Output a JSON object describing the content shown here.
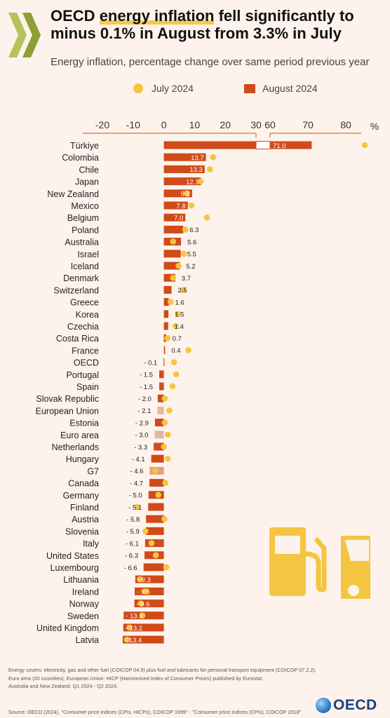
{
  "header": {
    "title_pre": "OECD ",
    "title_highlight": "energy inflation",
    "title_post": " fell significantly to minus 0.1% in August from 3.3% in July",
    "subtitle": "Energy inflation, percentage change over same period previous year"
  },
  "legend": {
    "july": "July 2024",
    "august": "August 2024"
  },
  "colors": {
    "bar": "#d04a1a",
    "bar_aggregate": "#e0b8a6",
    "bar_g7": "#eb9b7c",
    "dot": "#f5c542",
    "axis": "#e8824e",
    "background": "#fdf3ec"
  },
  "chart_data": {
    "type": "bar",
    "orientation": "horizontal",
    "unit": "%",
    "xlim_segment1": [
      -20,
      30
    ],
    "xlim_segment2": [
      60,
      80
    ],
    "ticks_segment1": [
      -20,
      -10,
      0,
      10,
      20,
      30
    ],
    "ticks_segment2": [
      60,
      70,
      80
    ],
    "categories": [
      "Türkiye",
      "Colombia",
      "Chile",
      "Japan",
      "New Zealand",
      "Mexico",
      "Belgium",
      "Poland",
      "Australia",
      "Israel",
      "Iceland",
      "Denmark",
      "Switzerland",
      "Greece",
      "Korea",
      "Czechia",
      "Costa Rica",
      "France",
      "OECD",
      "Portugal",
      "Spain",
      "Slovak Republic",
      "European Union",
      "Estonia",
      "Euro area",
      "Netherlands",
      "Hungary",
      "G7",
      "Canada",
      "Germany",
      "Finland",
      "Austria",
      "Slovenia",
      "Italy",
      "United States",
      "Luxembourg",
      "Lithuania",
      "Ireland",
      "Norway",
      "Sweden",
      "United Kingdom",
      "Latvia"
    ],
    "series": [
      {
        "name": "August 2024",
        "values": [
          71.0,
          13.7,
          13.3,
          12.1,
          9.2,
          7.8,
          7.0,
          6.3,
          5.6,
          5.5,
          5.2,
          3.7,
          2.5,
          1.6,
          1.5,
          1.4,
          0.7,
          0.4,
          -0.1,
          -1.5,
          -1.5,
          -2.0,
          -2.1,
          -2.9,
          -3.0,
          -3.3,
          -4.1,
          -4.6,
          -4.7,
          -5.0,
          -5.1,
          -5.8,
          -5.9,
          -6.1,
          -6.3,
          -6.6,
          -9.3,
          -9.5,
          -9.6,
          -13.1,
          -13.2,
          -13.4
        ]
      },
      {
        "name": "July 2024",
        "values": [
          85.0,
          16.0,
          15.0,
          12.0,
          7.5,
          9.0,
          14.0,
          7.0,
          3.0,
          6.5,
          4.8,
          3.0,
          6.2,
          2.2,
          4.5,
          3.8,
          1.2,
          8.0,
          3.3,
          4.0,
          2.8,
          0.3,
          1.8,
          0.3,
          1.3,
          0.0,
          1.3,
          -2.8,
          0.5,
          -1.8,
          -8.5,
          0.2,
          -6.0,
          -4.0,
          -2.6,
          0.8,
          -7.8,
          -6.0,
          -7.5,
          -7.0,
          -11.2,
          -12.0
        ]
      }
    ],
    "labels": [
      "71.0",
      "13.7",
      "13.3",
      "12.1",
      "9.2",
      "7.8",
      "7.0",
      "6.3",
      "5.6",
      "5.5",
      "5.2",
      "3.7",
      "2.5",
      "1.6",
      "1.5",
      "1.4",
      "0.7",
      "0.4",
      "- 0.1",
      "- 1.5",
      "- 1.5",
      "- 2.0",
      "- 2.1",
      "- 2.9",
      "- 3.0",
      "- 3.3",
      "- 4.1",
      "- 4.6",
      "- 4.7",
      "- 5.0",
      "- 5.1",
      "- 5.8",
      "- 5.9",
      "- 6.1",
      "- 6.3",
      "- 6.6",
      "- 9.3",
      "- 9.5",
      "- 9.6",
      "- 13.1",
      "- 13.2",
      "- 13.4"
    ],
    "highlight": {
      "European Union": "aggregate",
      "Euro area": "aggregate",
      "G7": "g7"
    }
  },
  "notes": [
    "Energy covers: electricity, gas and other fuel (COICOP 04.5) plus fuel and lubricants for personal transport equipment (COICOP 07.2.2).",
    "Euro area (20 countries), European Union: HICP (Harmonised Index of Consumer Prices) published by Eurostat.",
    "Australia and New Zealand: Q1 2024 - Q2 2024."
  ],
  "source": "Source: OECD (2024), \"Consumer price indices (CPIs, HICPs), COICOP 1999\" - \"Consumer price indices (CPIs), COICOP 2018\"",
  "brand": "OECD"
}
